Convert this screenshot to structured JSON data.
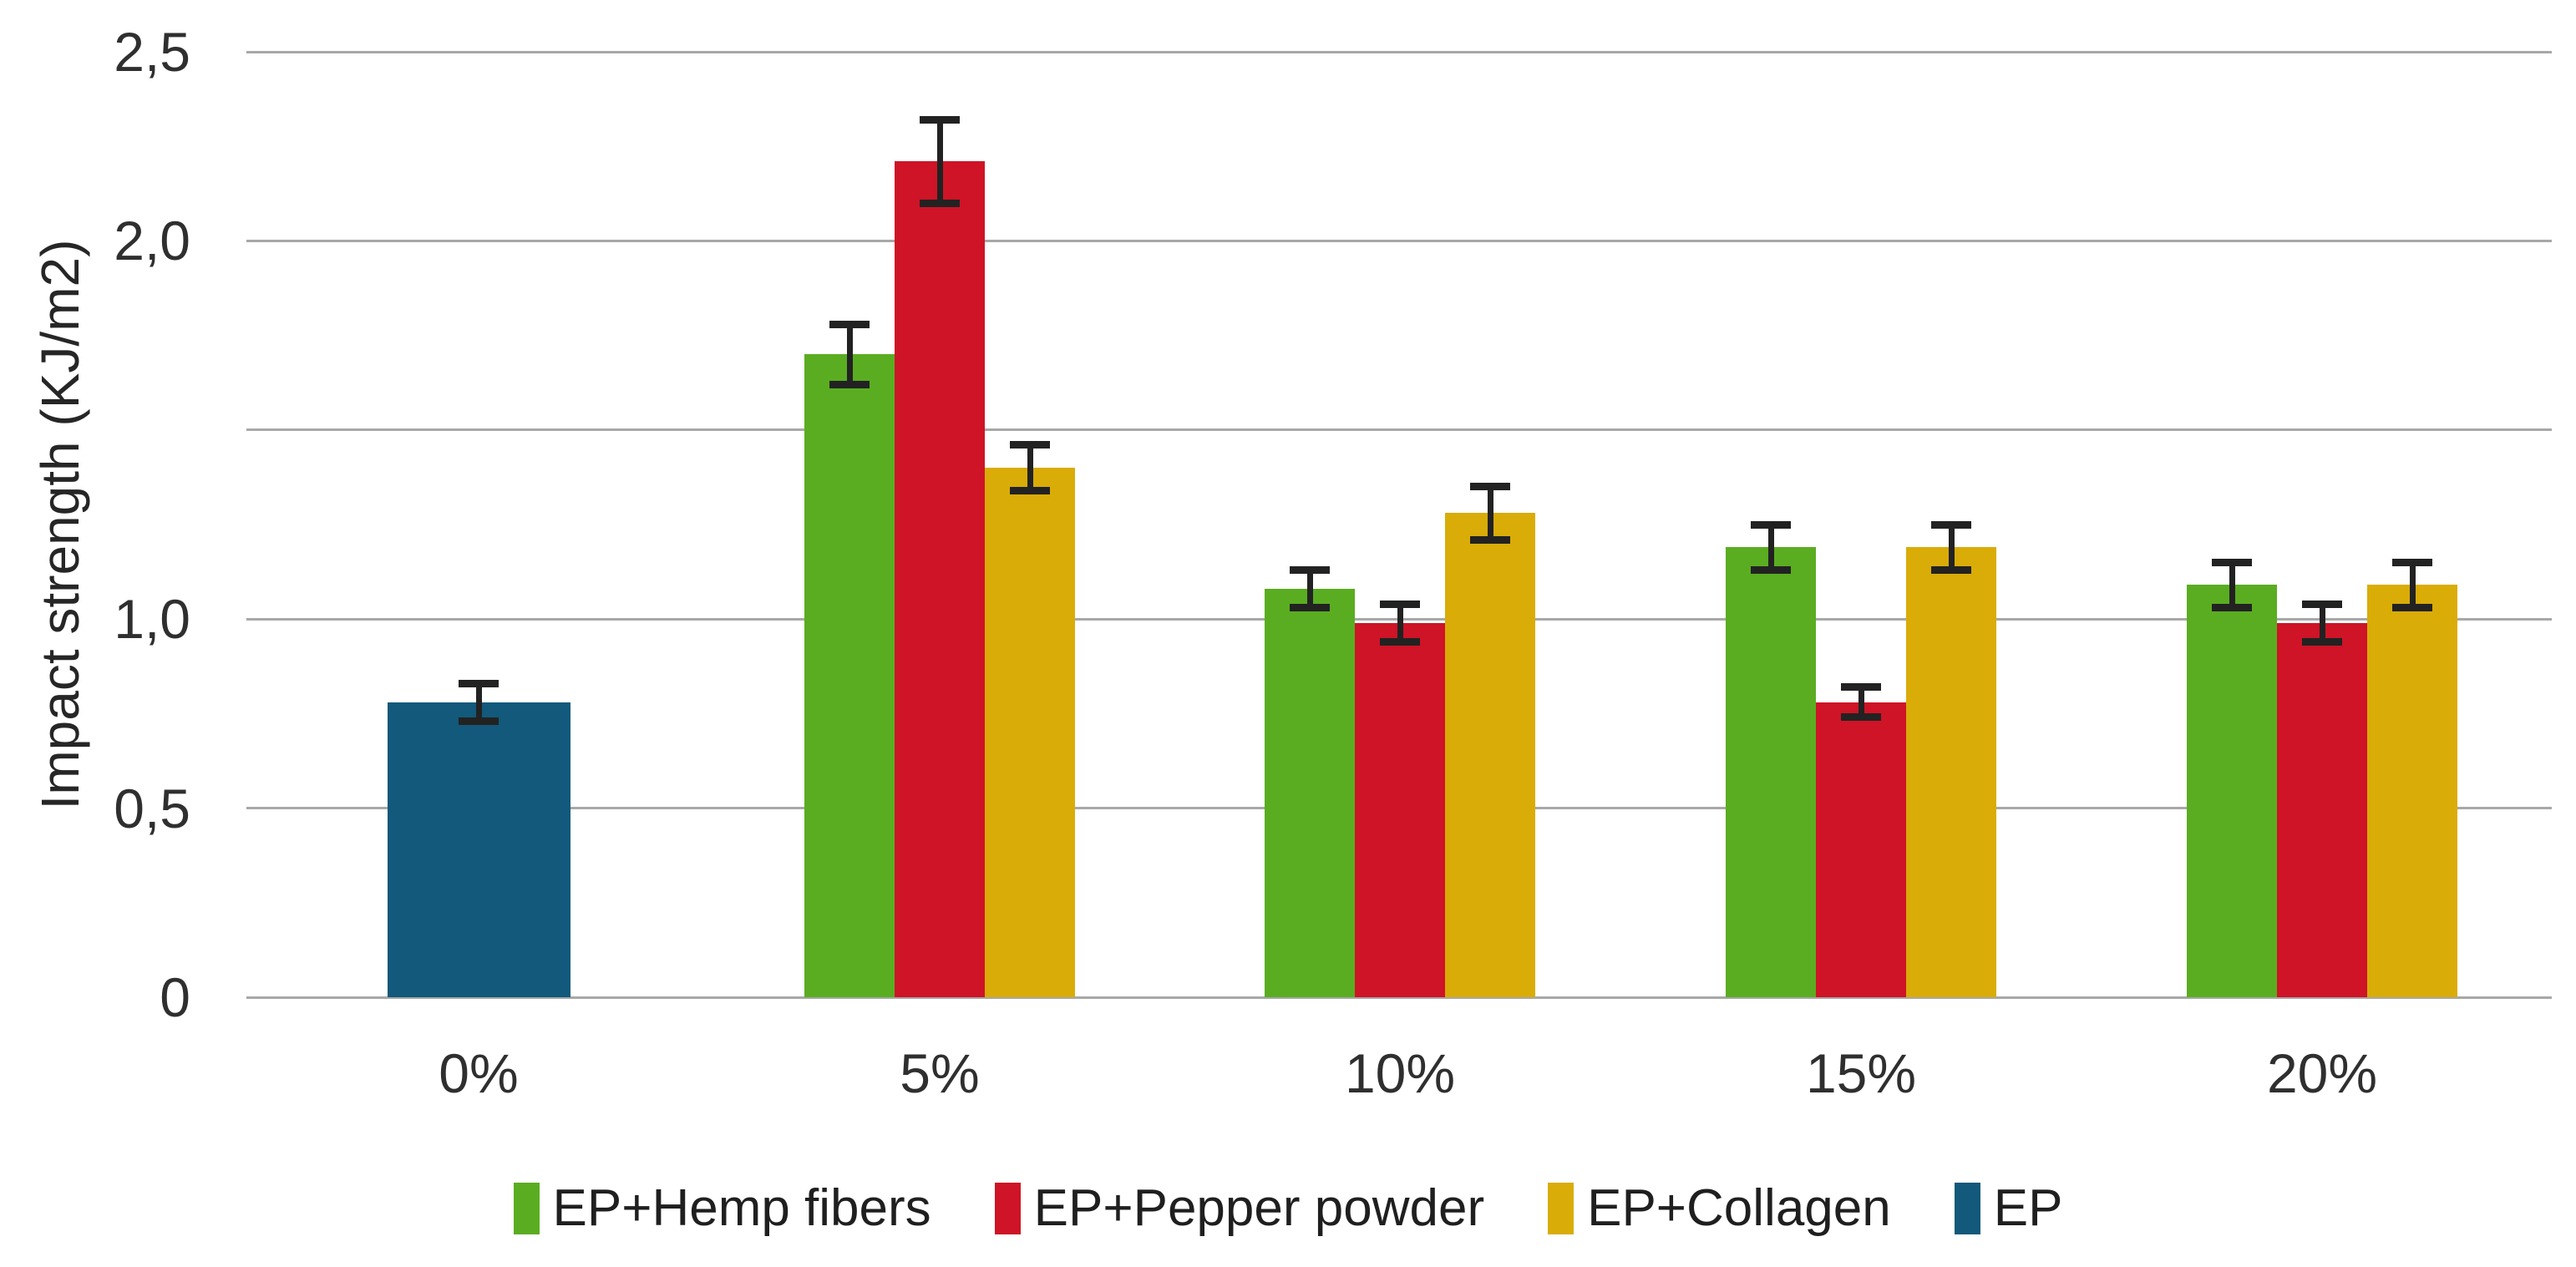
{
  "chart_data": {
    "type": "bar",
    "title": "",
    "ylabel": "Impact strength (KJ/m2)",
    "xlabel": "",
    "categories": [
      "0%",
      "5%",
      "10%",
      "15%",
      "20%"
    ],
    "y_axis": {
      "min": 0,
      "max": 2.5,
      "grid": true,
      "ticks": [
        {
          "value": 0,
          "label": "0"
        },
        {
          "value": 0.5,
          "label": "0,5"
        },
        {
          "value": 1.0,
          "label": "1,0"
        },
        {
          "value": 1.5,
          "label": ""
        },
        {
          "value": 2.0,
          "label": "2,0"
        },
        {
          "value": 2.5,
          "label": "2,5"
        }
      ]
    },
    "series": [
      {
        "name": "EP+Hemp fibers",
        "color": "#5aad21",
        "values": [
          null,
          1.7,
          1.08,
          1.19,
          1.09
        ],
        "errors": [
          null,
          0.08,
          0.05,
          0.06,
          0.06
        ]
      },
      {
        "name": "EP+Pepper powder",
        "color": "#ce1426",
        "values": [
          null,
          2.21,
          0.99,
          0.78,
          0.99
        ],
        "errors": [
          null,
          0.11,
          0.05,
          0.04,
          0.05
        ]
      },
      {
        "name": "EP+Collagen",
        "color": "#d9ac08",
        "values": [
          null,
          1.4,
          1.28,
          1.19,
          1.09
        ],
        "errors": [
          null,
          0.06,
          0.07,
          0.06,
          0.06
        ]
      },
      {
        "name": "EP",
        "color": "#12597b",
        "values": [
          0.78,
          null,
          null,
          null,
          null
        ],
        "errors": [
          0.05,
          null,
          null,
          null,
          null
        ]
      }
    ],
    "legend": {
      "position": "bottom",
      "items": [
        {
          "label": "EP+Hemp fibers",
          "color": "#5aad21"
        },
        {
          "label": "EP+Pepper powder",
          "color": "#ce1426"
        },
        {
          "label": "EP+Collagen",
          "color": "#d9ac08"
        },
        {
          "label": "EP",
          "color": "#12597b"
        }
      ]
    },
    "colors": {
      "background": "#ffffff",
      "gridline": "#a8a8a8",
      "error_bar": "#222222",
      "tick_text": "#2f2f2f",
      "axis_title_text": "#262626",
      "legend_text": "#1f1f1f"
    }
  }
}
